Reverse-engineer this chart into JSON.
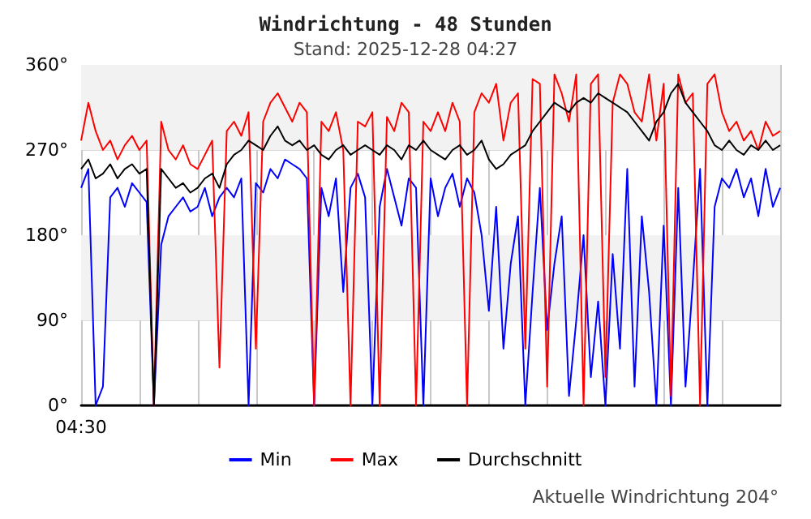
{
  "chart_data": {
    "type": "line",
    "title": "Windrichtung - 48 Stunden",
    "subtitle": "Stand: 2025-12-28 04:27",
    "annotations": [
      "Aktuelle Windrichtung 204°"
    ],
    "categories": [
      "04:30",
      null,
      null,
      null,
      null,
      null,
      null,
      null,
      null,
      null,
      null,
      null,
      null,
      null,
      null,
      null,
      null,
      null,
      null,
      null,
      null,
      null,
      null,
      null,
      null,
      null,
      null,
      null,
      null,
      null,
      null,
      null,
      null,
      null,
      null,
      null,
      null,
      null,
      null,
      null,
      null,
      null,
      null,
      null,
      null,
      null,
      null,
      null,
      null,
      null,
      null,
      null,
      null,
      null,
      null,
      null,
      null,
      null,
      null,
      null,
      null,
      null,
      null,
      null,
      null,
      null,
      null,
      null,
      null,
      null,
      null,
      null,
      null,
      null,
      null,
      null,
      null,
      null,
      null,
      null,
      null,
      null,
      null,
      null,
      null,
      null,
      null,
      null,
      null,
      null,
      null,
      null,
      null,
      null,
      null,
      null,
      null
    ],
    "series": [
      {
        "name": "Min",
        "color": "#0000ff",
        "values": [
          230,
          250,
          0,
          20,
          220,
          230,
          210,
          235,
          225,
          215,
          0,
          170,
          200,
          210,
          220,
          205,
          210,
          230,
          200,
          220,
          230,
          220,
          240,
          0,
          235,
          225,
          250,
          240,
          260,
          255,
          250,
          240,
          0,
          230,
          200,
          240,
          120,
          230,
          245,
          220,
          0,
          210,
          250,
          220,
          190,
          240,
          230,
          0,
          240,
          200,
          230,
          245,
          210,
          240,
          225,
          180,
          100,
          210,
          60,
          150,
          200,
          0,
          120,
          230,
          80,
          150,
          200,
          10,
          90,
          180,
          30,
          110,
          0,
          160,
          60,
          250,
          20,
          200,
          120,
          0,
          190,
          0,
          230,
          20,
          130,
          250,
          0,
          210,
          240,
          230,
          250,
          220,
          240,
          200,
          250,
          210,
          230
        ]
      },
      {
        "name": "Max",
        "color": "#ff0000",
        "values": [
          280,
          320,
          290,
          270,
          280,
          260,
          275,
          285,
          270,
          280,
          0,
          300,
          270,
          260,
          275,
          255,
          250,
          265,
          280,
          40,
          290,
          300,
          285,
          310,
          60,
          300,
          320,
          330,
          315,
          300,
          320,
          310,
          0,
          300,
          290,
          310,
          270,
          0,
          300,
          295,
          310,
          0,
          305,
          290,
          320,
          310,
          0,
          300,
          290,
          310,
          290,
          320,
          300,
          0,
          310,
          330,
          320,
          340,
          280,
          320,
          330,
          60,
          345,
          340,
          20,
          350,
          330,
          300,
          350,
          0,
          340,
          350,
          30,
          320,
          350,
          340,
          310,
          300,
          350,
          280,
          340,
          10,
          350,
          320,
          330,
          0,
          340,
          350,
          310,
          290,
          300,
          280,
          290,
          270,
          300,
          285,
          290
        ]
      },
      {
        "name": "Durchschnitt",
        "color": "#000000",
        "values": [
          250,
          260,
          240,
          245,
          255,
          240,
          250,
          255,
          245,
          250,
          0,
          250,
          240,
          230,
          235,
          225,
          230,
          240,
          245,
          230,
          255,
          265,
          270,
          280,
          275,
          270,
          285,
          295,
          280,
          275,
          280,
          270,
          275,
          265,
          260,
          270,
          275,
          265,
          270,
          275,
          270,
          265,
          275,
          270,
          260,
          275,
          270,
          280,
          270,
          265,
          260,
          270,
          275,
          265,
          270,
          280,
          260,
          250,
          255,
          265,
          270,
          275,
          290,
          300,
          310,
          320,
          315,
          310,
          320,
          325,
          320,
          330,
          325,
          320,
          315,
          310,
          300,
          290,
          280,
          300,
          310,
          330,
          340,
          320,
          310,
          300,
          290,
          275,
          270,
          280,
          270,
          265,
          275,
          270,
          280,
          270,
          275
        ]
      }
    ],
    "ylim": [
      0,
      360
    ],
    "yticks": [
      {
        "value": 0,
        "label": "0°"
      },
      {
        "value": 90,
        "label": "90°"
      },
      {
        "value": 180,
        "label": "180°"
      },
      {
        "value": 270,
        "label": "270°"
      },
      {
        "value": 360,
        "label": "360°"
      }
    ],
    "bands": [
      {
        "axis": "y",
        "from": 90,
        "to": 180,
        "color": "#f2f2f2"
      },
      {
        "axis": "y",
        "from": 270,
        "to": 360,
        "color": "#f2f2f2"
      }
    ],
    "grid": true,
    "legend": "bottom",
    "marker": "none",
    "line_style": "solid"
  }
}
